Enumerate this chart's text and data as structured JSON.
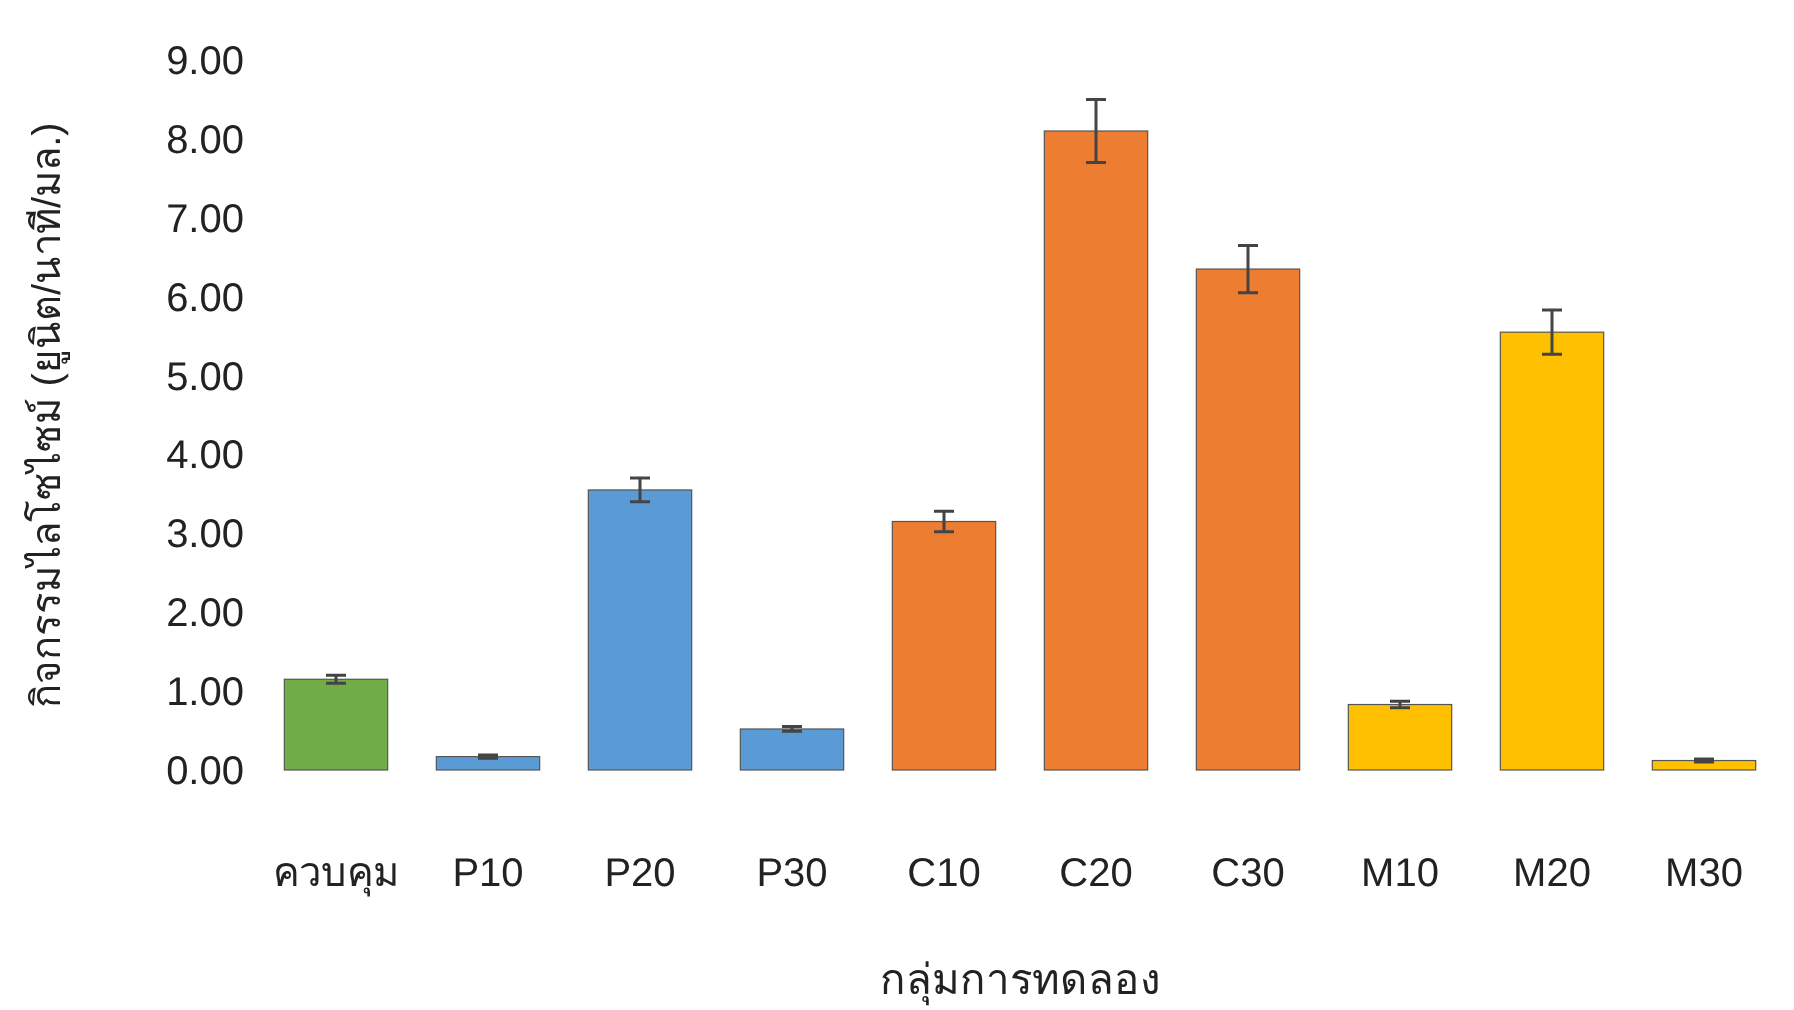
{
  "chart_data": {
    "type": "bar",
    "xlabel": "กลุ่มการทดลอง",
    "ylabel": "กิจกรรมไลโซไซม์ (ยูนิต/นาที/มล.)",
    "categories": [
      "ควบคุม",
      "P10",
      "P20",
      "P30",
      "C10",
      "C20",
      "C30",
      "M10",
      "M20",
      "M30"
    ],
    "values": [
      1.15,
      0.17,
      3.55,
      0.52,
      3.15,
      8.1,
      6.35,
      0.83,
      5.55,
      0.12
    ],
    "errors": [
      0.05,
      0.02,
      0.15,
      0.03,
      0.13,
      0.4,
      0.3,
      0.04,
      0.28,
      0.02
    ],
    "colors": [
      "#70ad47",
      "#5b9bd5",
      "#5b9bd5",
      "#5b9bd5",
      "#ed7d31",
      "#ed7d31",
      "#ed7d31",
      "#ffc000",
      "#ffc000",
      "#ffc000"
    ],
    "ylim": [
      0,
      9
    ],
    "yticks": [
      {
        "value": 0,
        "label": "0.00"
      },
      {
        "value": 1,
        "label": "1.00"
      },
      {
        "value": 2,
        "label": "2.00"
      },
      {
        "value": 3,
        "label": "3.00"
      },
      {
        "value": 4,
        "label": "4.00"
      },
      {
        "value": 5,
        "label": "5.00"
      },
      {
        "value": 6,
        "label": "6.00"
      },
      {
        "value": 7,
        "label": "7.00"
      },
      {
        "value": 8,
        "label": "8.00"
      },
      {
        "value": 9,
        "label": "9.00"
      }
    ]
  }
}
